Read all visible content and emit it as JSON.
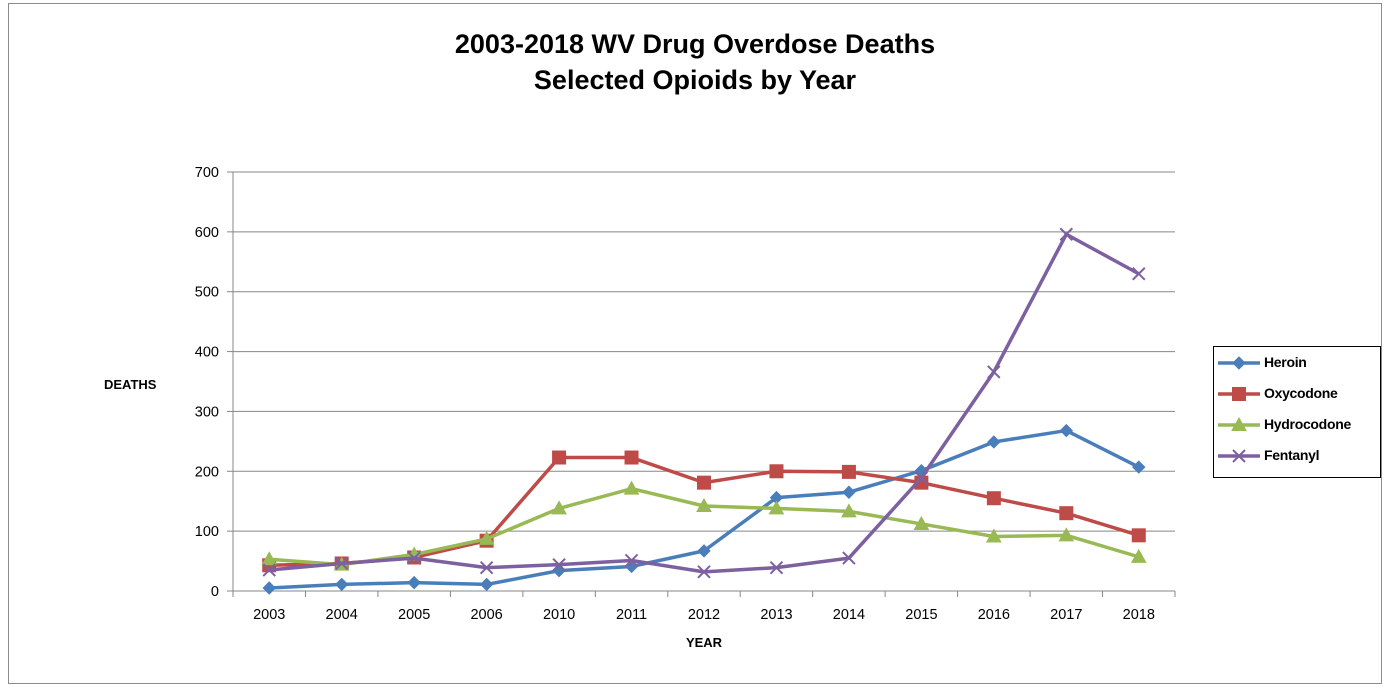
{
  "chart_data": {
    "type": "line",
    "title_lines": [
      "2003-2018 WV Drug Overdose Deaths",
      "Selected Opioids by Year"
    ],
    "xlabel": "YEAR",
    "ylabel": "DEATHS",
    "categories": [
      "2003",
      "2004",
      "2005",
      "2006",
      "2010",
      "2011",
      "2012",
      "2013",
      "2014",
      "2015",
      "2016",
      "2017",
      "2018"
    ],
    "ylim": [
      0,
      700
    ],
    "yticks": [
      "0",
      "100",
      "200",
      "300",
      "400",
      "500",
      "600",
      "700"
    ],
    "grid": "horizontal",
    "legend_position": "right",
    "series": [
      {
        "name": "Heroin",
        "color": "#4a7ebb",
        "marker": "diamond",
        "values": [
          5,
          11,
          14,
          11,
          34,
          41,
          67,
          156,
          165,
          201,
          249,
          268,
          207
        ]
      },
      {
        "name": "Oxycodone",
        "color": "#be4b48",
        "marker": "square",
        "values": [
          43,
          46,
          56,
          84,
          223,
          223,
          181,
          200,
          199,
          181,
          155,
          130,
          93
        ]
      },
      {
        "name": "Hydrocodone",
        "color": "#98b954",
        "marker": "triangle",
        "values": [
          53,
          44,
          61,
          87,
          138,
          171,
          142,
          138,
          133,
          112,
          91,
          93,
          57
        ]
      },
      {
        "name": "Fentanyl",
        "color": "#7d60a0",
        "marker": "x",
        "values": [
          35,
          46,
          55,
          39,
          44,
          51,
          32,
          39,
          55,
          189,
          366,
          596,
          530
        ]
      }
    ]
  }
}
